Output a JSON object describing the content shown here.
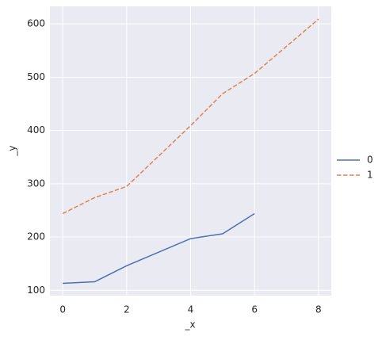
{
  "chart_data": {
    "type": "line",
    "x_label": "_x",
    "y_label": "_y",
    "series": [
      {
        "name": "0",
        "color": "#4c72b0",
        "dash": "solid",
        "x": [
          0,
          1,
          2,
          4,
          5,
          6
        ],
        "values": [
          113,
          116,
          146,
          197,
          206,
          244
        ]
      },
      {
        "name": "1",
        "color": "#dd8452",
        "dash": "dashed",
        "x": [
          0,
          1,
          2,
          4,
          5,
          6,
          8
        ],
        "values": [
          244,
          274,
          295,
          409,
          469,
          507,
          609
        ]
      }
    ],
    "xlim": [
      -0.4,
      8.4
    ],
    "xticks": [
      0,
      2,
      4,
      6,
      8
    ],
    "ylim": [
      90,
      633
    ],
    "yticks": [
      100,
      200,
      300,
      400,
      500,
      600
    ],
    "grid": true,
    "legend": "right"
  }
}
